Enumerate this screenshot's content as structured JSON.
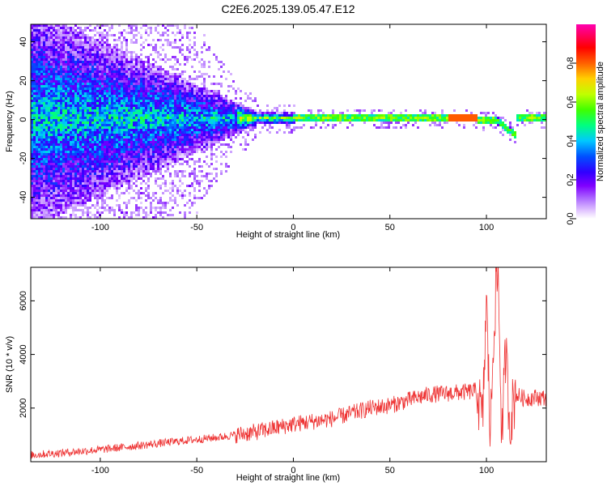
{
  "title": "C2E6.2025.139.05.47.E12",
  "chart_data": [
    {
      "type": "heatmap",
      "xlabel": "Height of straight line (km)",
      "ylabel": "Frequency (Hz)",
      "xlim": [
        -136,
        131
      ],
      "ylim": [
        -51,
        49
      ],
      "xticks": [
        -100,
        -50,
        0,
        50,
        100
      ],
      "yticks": [
        -40,
        -20,
        0,
        20,
        40
      ],
      "colorbar": {
        "label": "Normalized spectral amplitude",
        "range": [
          0,
          1
        ],
        "ticks": [
          0.0,
          0.2,
          0.4,
          0.6,
          0.8
        ],
        "colormap": [
          "#ffffff",
          "#d9b8ff",
          "#b070ff",
          "#7f00ff",
          "#3000ff",
          "#0050ff",
          "#00c8ff",
          "#00ff80",
          "#40ff00",
          "#c0ff00",
          "#ffd000",
          "#ff6000",
          "#ff0000",
          "#ff00b0"
        ]
      },
      "grid": false
    },
    {
      "type": "line",
      "xlabel": "Height of straight line (km)",
      "ylabel": "SNR (10 * v/v)",
      "xlim": [
        -136,
        131
      ],
      "ylim": [
        0,
        7250
      ],
      "xticks": [
        -100,
        -50,
        0,
        50,
        100
      ],
      "yticks": [
        2000,
        4000,
        6000
      ],
      "color": "#ee3333",
      "grid": false,
      "series": [
        {
          "x": [
            -136,
            -120,
            -100,
            -80,
            -60,
            -40,
            -30,
            -20,
            -10,
            0,
            10,
            20,
            30,
            40,
            50,
            60,
            70,
            80,
            90,
            95,
            98,
            100,
            102,
            104,
            106,
            108,
            110,
            112,
            115,
            120,
            125,
            131
          ],
          "y": [
            250,
            330,
            450,
            600,
            760,
            900,
            1000,
            1100,
            1250,
            1400,
            1500,
            1600,
            1800,
            2000,
            2100,
            2300,
            2500,
            2550,
            2600,
            2650,
            1500,
            6000,
            900,
            5400,
            7200,
            800,
            4200,
            1500,
            2500,
            2350,
            2400,
            2380
          ]
        }
      ]
    }
  ]
}
